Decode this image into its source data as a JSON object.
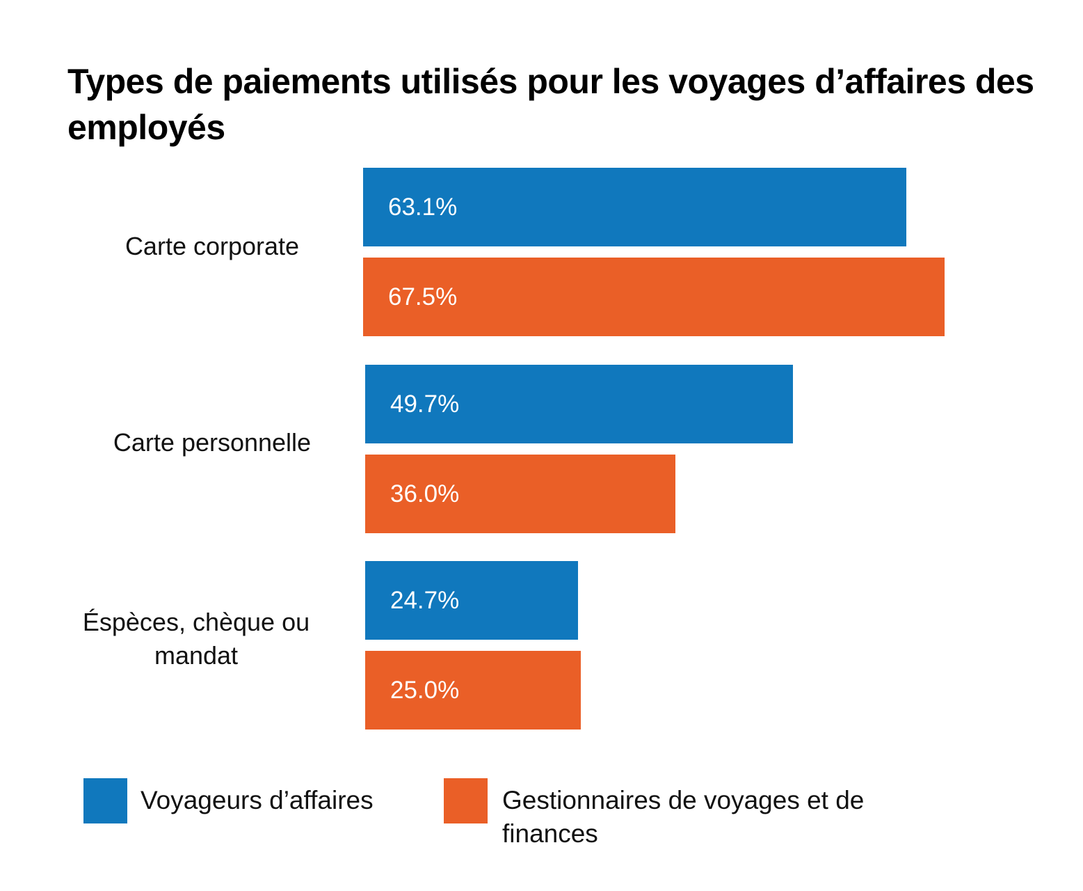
{
  "chart_data": {
    "type": "bar",
    "orientation": "horizontal",
    "title": "Types de paiements utilisés pour les voyages d’affaires des employés",
    "categories": [
      "Carte corporate",
      "Carte personnelle",
      "Éspèces, chèque ou mandat"
    ],
    "series": [
      {
        "name": "Voyageurs d’affaires",
        "color": "#1078BD",
        "values": [
          63.1,
          49.7,
          24.7
        ],
        "labels": [
          "63.1%",
          "49.7%",
          "24.7%"
        ]
      },
      {
        "name": "Gestionnaires de voyages et de finances",
        "color": "#EA5F27",
        "values": [
          67.5,
          36.0,
          25.0
        ],
        "labels": [
          "67.5%",
          "36.0%",
          "25.0%"
        ]
      }
    ],
    "xlim": [
      0,
      70
    ],
    "grid": false,
    "legend_position": "bottom-left",
    "xlabel": "",
    "ylabel": ""
  }
}
